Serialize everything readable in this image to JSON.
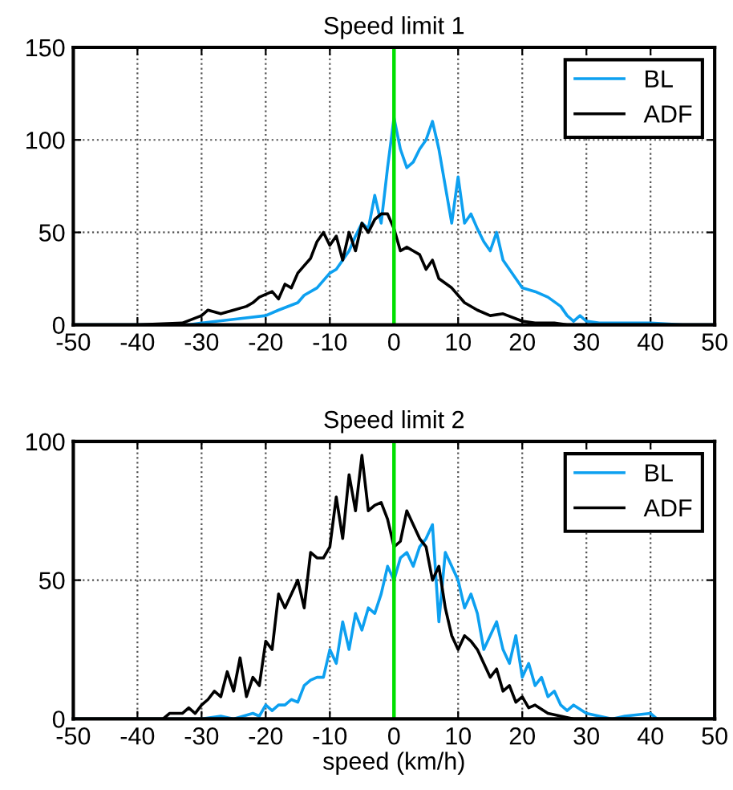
{
  "chart_data": [
    {
      "type": "line",
      "title": "Speed limit 1",
      "xlim": [
        -50,
        50
      ],
      "xticks": [
        -50,
        -40,
        -30,
        -20,
        -10,
        0,
        10,
        20,
        30,
        40,
        50
      ],
      "ylim": [
        0,
        150
      ],
      "yticks": [
        0,
        50,
        100,
        150
      ],
      "grid": true,
      "legend": "top right",
      "ref_lines": [
        {
          "axis": "x",
          "value": 0,
          "color": "#00e000"
        }
      ],
      "series": [
        {
          "name": "BL",
          "color": "#0da0f0",
          "x": [
            -50,
            -40,
            -32,
            -30,
            -25,
            -20,
            -18,
            -15,
            -14,
            -12,
            -10,
            -9,
            -8,
            -7,
            -6,
            -5,
            -4,
            -3,
            -2,
            -1,
            0,
            1,
            2,
            3,
            4,
            5,
            6,
            7,
            8,
            9,
            10,
            11,
            12,
            13,
            14,
            15,
            16,
            17,
            18,
            19,
            20,
            22,
            24,
            26,
            27,
            28,
            29,
            30,
            32,
            35,
            40,
            45,
            50
          ],
          "values": [
            0,
            0,
            0,
            1,
            3,
            5,
            8,
            12,
            16,
            20,
            28,
            30,
            35,
            40,
            48,
            55,
            52,
            70,
            55,
            85,
            112,
            95,
            85,
            88,
            95,
            100,
            110,
            95,
            75,
            55,
            80,
            55,
            60,
            52,
            45,
            40,
            50,
            35,
            30,
            25,
            20,
            18,
            15,
            10,
            5,
            2,
            5,
            2,
            1,
            1,
            1,
            0,
            0
          ]
        },
        {
          "name": "ADF",
          "color": "#000000",
          "x": [
            -50,
            -40,
            -33,
            -30,
            -29,
            -27,
            -25,
            -23,
            -22,
            -21,
            -19,
            -18,
            -17,
            -16,
            -15,
            -14,
            -13,
            -12,
            -11,
            -10,
            -9,
            -8,
            -7,
            -6,
            -5,
            -4,
            -3,
            -2,
            -1,
            0,
            1,
            2,
            3,
            4,
            5,
            6,
            7,
            9,
            11,
            13,
            15,
            17,
            20,
            22,
            25,
            27,
            30,
            40,
            50
          ],
          "values": [
            0,
            0,
            1,
            5,
            8,
            6,
            8,
            10,
            12,
            15,
            18,
            14,
            22,
            20,
            28,
            32,
            36,
            45,
            50,
            43,
            48,
            35,
            50,
            40,
            55,
            50,
            57,
            60,
            60,
            52,
            40,
            42,
            40,
            38,
            30,
            35,
            25,
            20,
            12,
            8,
            5,
            6,
            2,
            1,
            1,
            0,
            0,
            0,
            0
          ]
        }
      ]
    },
    {
      "type": "line",
      "title": "Speed limit 2",
      "xlabel": "speed (km/h)",
      "xlim": [
        -50,
        50
      ],
      "xticks": [
        -50,
        -40,
        -30,
        -20,
        -10,
        0,
        10,
        20,
        30,
        40,
        50
      ],
      "ylim": [
        0,
        100
      ],
      "yticks": [
        0,
        50,
        100
      ],
      "grid": true,
      "legend": "top right",
      "ref_lines": [
        {
          "axis": "x",
          "value": 0,
          "color": "#00e000"
        }
      ],
      "series": [
        {
          "name": "BL",
          "color": "#0da0f0",
          "x": [
            -50,
            -30,
            -27,
            -25,
            -22,
            -21,
            -20,
            -19,
            -18,
            -17,
            -16,
            -15,
            -14,
            -13,
            -12,
            -11,
            -10,
            -9,
            -8,
            -7,
            -6,
            -5,
            -4,
            -3,
            -2,
            -1,
            0,
            1,
            2,
            3,
            4,
            5,
            6,
            7,
            8,
            9,
            10,
            11,
            12,
            13,
            14,
            15,
            16,
            17,
            18,
            19,
            20,
            21,
            22,
            23,
            24,
            25,
            26,
            27,
            28,
            30,
            32,
            34,
            36,
            40,
            41,
            50
          ],
          "values": [
            0,
            0,
            1,
            0,
            2,
            1,
            5,
            3,
            5,
            5,
            7,
            6,
            12,
            14,
            15,
            15,
            25,
            20,
            35,
            25,
            38,
            32,
            40,
            38,
            45,
            55,
            50,
            58,
            60,
            55,
            62,
            65,
            70,
            35,
            60,
            55,
            50,
            40,
            45,
            38,
            25,
            30,
            35,
            25,
            20,
            30,
            15,
            20,
            12,
            15,
            8,
            10,
            5,
            3,
            5,
            2,
            1,
            0,
            1,
            2,
            0,
            0
          ]
        },
        {
          "name": "ADF",
          "color": "#000000",
          "x": [
            -50,
            -36,
            -35,
            -33,
            -32,
            -31,
            -30,
            -29,
            -28,
            -27,
            -26,
            -25,
            -24,
            -23,
            -22,
            -21,
            -20,
            -19,
            -18,
            -17,
            -16,
            -15,
            -14,
            -13,
            -12,
            -11,
            -10,
            -9,
            -8,
            -7,
            -6,
            -5,
            -4,
            -3,
            -2,
            -1,
            0,
            1,
            2,
            3,
            4,
            5,
            6,
            7,
            8,
            9,
            10,
            11,
            12,
            13,
            14,
            15,
            16,
            17,
            18,
            19,
            20,
            21,
            22,
            24,
            26,
            28,
            50
          ],
          "values": [
            0,
            0,
            2,
            2,
            4,
            2,
            5,
            7,
            10,
            8,
            17,
            10,
            22,
            8,
            15,
            12,
            28,
            25,
            45,
            40,
            45,
            50,
            40,
            60,
            58,
            58,
            62,
            80,
            65,
            88,
            75,
            95,
            75,
            77,
            78,
            72,
            62,
            64,
            75,
            70,
            65,
            62,
            50,
            55,
            40,
            30,
            25,
            30,
            28,
            25,
            20,
            15,
            18,
            10,
            12,
            6,
            8,
            4,
            5,
            2,
            1,
            0,
            0
          ]
        }
      ]
    }
  ]
}
